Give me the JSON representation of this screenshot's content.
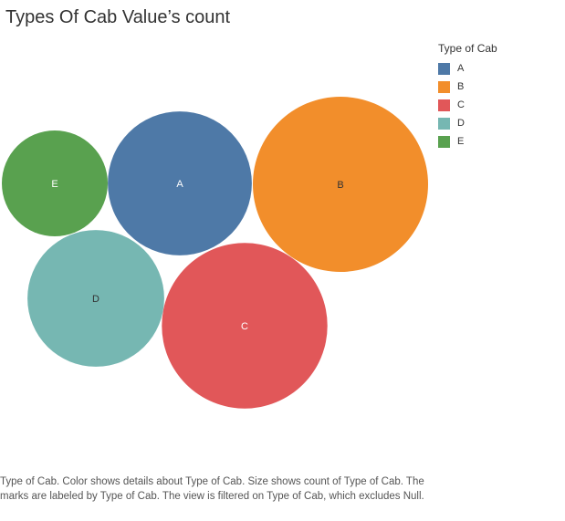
{
  "title": "Types Of Cab Value’s count",
  "legend": {
    "title": "Type of Cab",
    "items": [
      {
        "label": "A",
        "color": "#4e79a7"
      },
      {
        "label": "B",
        "color": "#f28e2b"
      },
      {
        "label": "C",
        "color": "#e15759"
      },
      {
        "label": "D",
        "color": "#76b7b2"
      },
      {
        "label": "E",
        "color": "#59a14f"
      }
    ]
  },
  "caption": "Type of Cab.  Color shows details about Type of Cab.  Size shows count of Type of Cab.  The marks are labeled by Type of Cab. The view is filtered on Type of Cab, which excludes Null.",
  "chart_data": {
    "type": "bubble",
    "title": "Types Of Cab Value’s count",
    "size_measure": "count of Type of Cab",
    "legend_position": "top-right",
    "series": [
      {
        "category": "A",
        "value": 25,
        "color": "#4e79a7",
        "label_color": "#ffffff"
      },
      {
        "category": "B",
        "value": 37,
        "color": "#f28e2b",
        "label_color": "#333333"
      },
      {
        "category": "C",
        "value": 33,
        "color": "#e15759",
        "label_color": "#ffffff"
      },
      {
        "category": "D",
        "value": 22.5,
        "color": "#76b7b2",
        "label_color": "#333333"
      },
      {
        "category": "E",
        "value": 13.5,
        "color": "#59a14f",
        "label_color": "#ffffff"
      }
    ]
  }
}
